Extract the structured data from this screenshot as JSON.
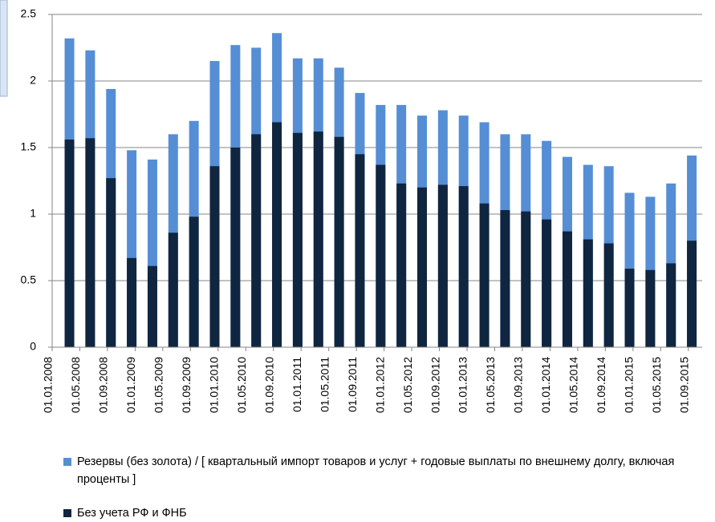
{
  "chart_data": {
    "type": "bar",
    "overlap": true,
    "x": [
      "01.03.2008",
      "01.06.2008",
      "01.09.2008",
      "01.12.2008",
      "01.03.2009",
      "01.06.2009",
      "01.09.2009",
      "01.12.2009",
      "01.03.2010",
      "01.06.2010",
      "01.09.2010",
      "01.12.2010",
      "01.03.2011",
      "01.06.2011",
      "01.09.2011",
      "01.12.2011",
      "01.03.2012",
      "01.06.2012",
      "01.09.2012",
      "01.12.2012",
      "01.03.2013",
      "01.06.2013",
      "01.09.2013",
      "01.12.2013",
      "01.03.2014",
      "01.06.2014",
      "01.09.2014",
      "01.12.2014",
      "01.03.2015",
      "01.06.2015",
      "01.09.2015"
    ],
    "series": [
      {
        "name": "Резервы (без золота) / [ квартальный импорт товаров и услуг + годовые выплаты по внешнему долгу, включая проценты ]",
        "color": "#558ed5",
        "values": [
          2.32,
          2.23,
          1.94,
          1.48,
          1.41,
          1.6,
          1.7,
          2.15,
          2.27,
          2.25,
          2.36,
          2.17,
          2.17,
          2.1,
          1.91,
          1.82,
          1.82,
          1.74,
          1.78,
          1.74,
          1.69,
          1.6,
          1.6,
          1.55,
          1.43,
          1.37,
          1.36,
          1.16,
          1.13,
          1.23,
          1.44
        ]
      },
      {
        "name": "Без учета РФ и ФНБ",
        "color": "#10253f",
        "values": [
          1.56,
          1.57,
          1.27,
          0.67,
          0.61,
          0.86,
          0.98,
          1.36,
          1.5,
          1.6,
          1.69,
          1.61,
          1.62,
          1.58,
          1.45,
          1.37,
          1.23,
          1.2,
          1.22,
          1.21,
          1.08,
          1.03,
          1.02,
          0.96,
          0.87,
          0.81,
          0.78,
          0.59,
          0.58,
          0.63,
          0.8
        ]
      }
    ],
    "xlim": [
      "01.01.2008",
      "01.11.2015"
    ],
    "xticks": [
      "01.01.2008",
      "01.05.2008",
      "01.09.2008",
      "01.01.2009",
      "01.05.2009",
      "01.09.2009",
      "01.01.2010",
      "01.05.2010",
      "01.09.2010",
      "01.01.2011",
      "01.05.2011",
      "01.09.2011",
      "01.01.2012",
      "01.05.2012",
      "01.09.2012",
      "01.01.2013",
      "01.05.2013",
      "01.09.2013",
      "01.01.2014",
      "01.05.2014",
      "01.09.2014",
      "01.01.2015",
      "01.05.2015",
      "01.09.2015"
    ],
    "ylim": [
      0,
      2.5
    ],
    "yticks": [
      0,
      0.5,
      1,
      1.5,
      2,
      2.5
    ],
    "grid": true,
    "legend": "bottom"
  }
}
